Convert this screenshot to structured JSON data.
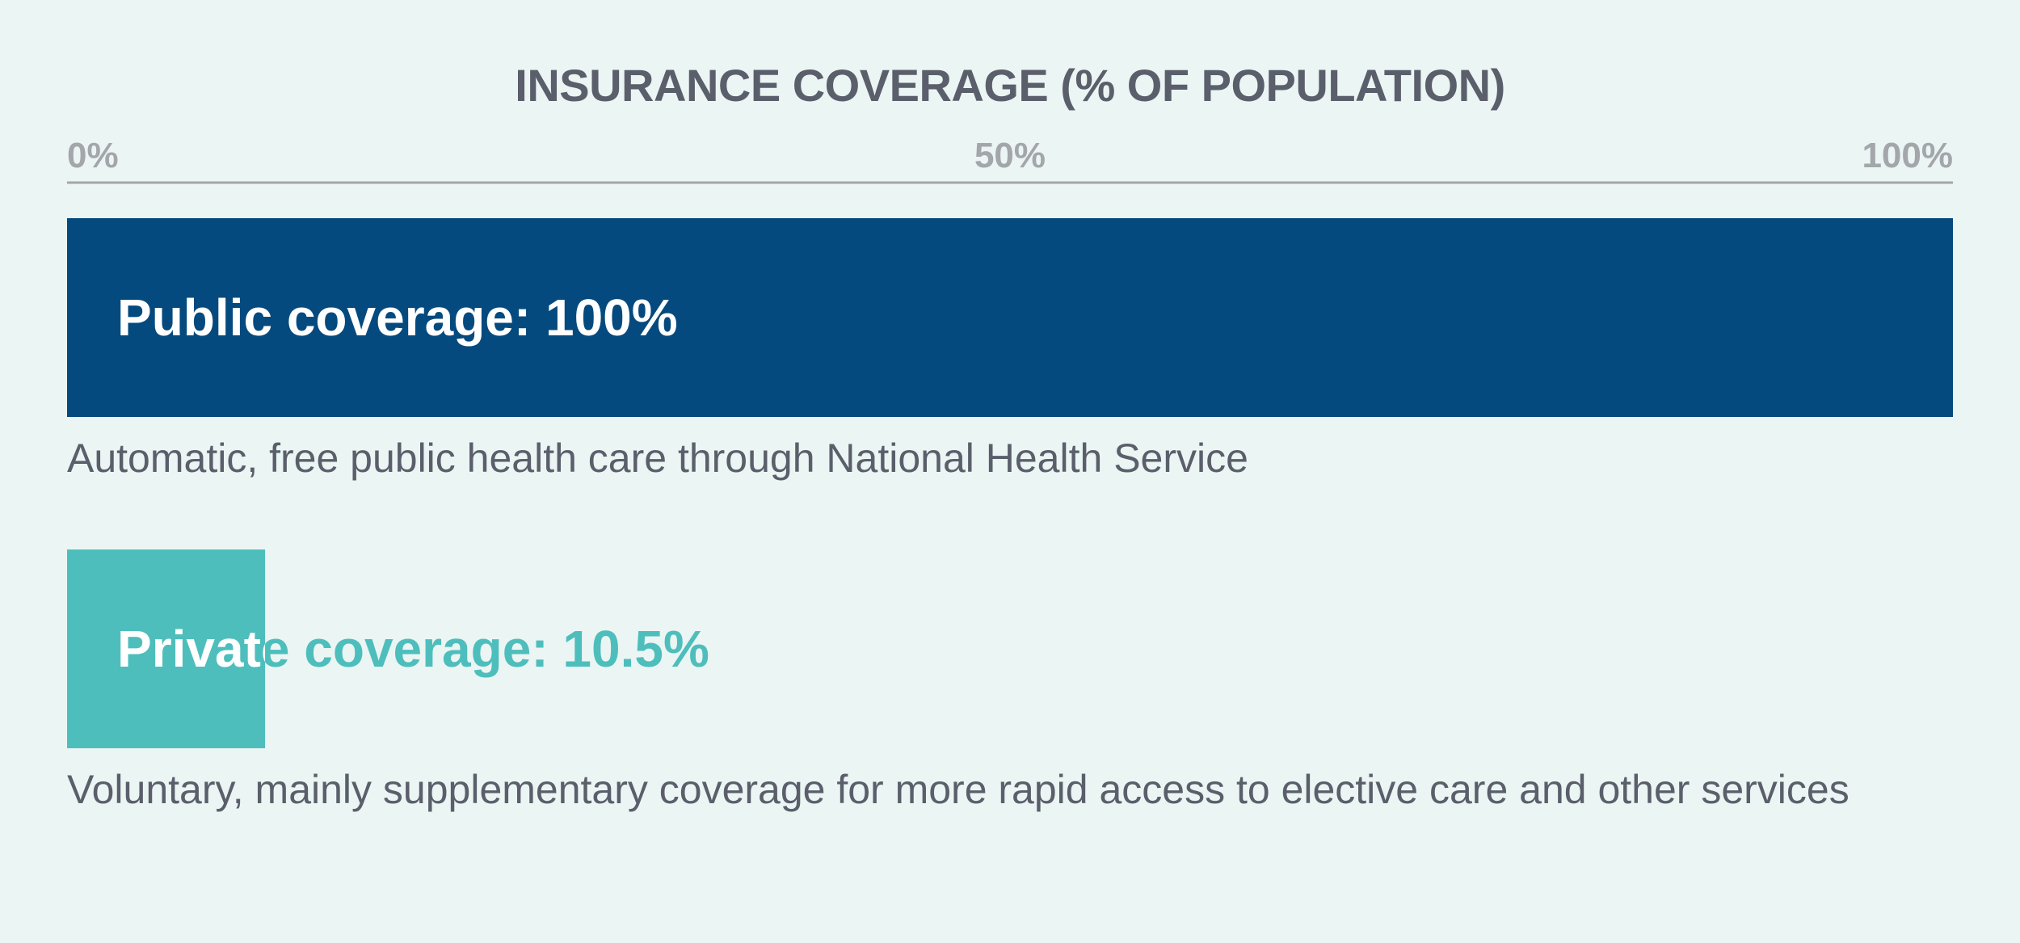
{
  "chart_data": {
    "type": "bar",
    "orientation": "horizontal",
    "title": "INSURANCE COVERAGE (% OF POPULATION)",
    "xlim": [
      0,
      100
    ],
    "ticks": [
      "0%",
      "50%",
      "100%"
    ],
    "tick_values": [
      0,
      50,
      100
    ],
    "grid": false,
    "categories": [
      "Public coverage",
      "Private coverage"
    ],
    "values": [
      100,
      10.5
    ],
    "bar_labels": [
      "Public coverage: 100%",
      "Private coverage: 10.5%"
    ],
    "descriptions": [
      "Automatic, free public health care through National Health Service",
      "Voluntary, mainly supplementary coverage for more rapid access to elective care and other services"
    ],
    "colors": {
      "bars": [
        "#054a7e",
        "#4ebebc"
      ],
      "bar_label_inside": "#ffffff",
      "bar_label_outside": [
        "#054a7e",
        "#4ebebc"
      ],
      "text": "#5a5f6b",
      "ticks": "#a3a6aa",
      "axis_line": "#a3a6aa",
      "background": "#ebf5f3"
    }
  }
}
